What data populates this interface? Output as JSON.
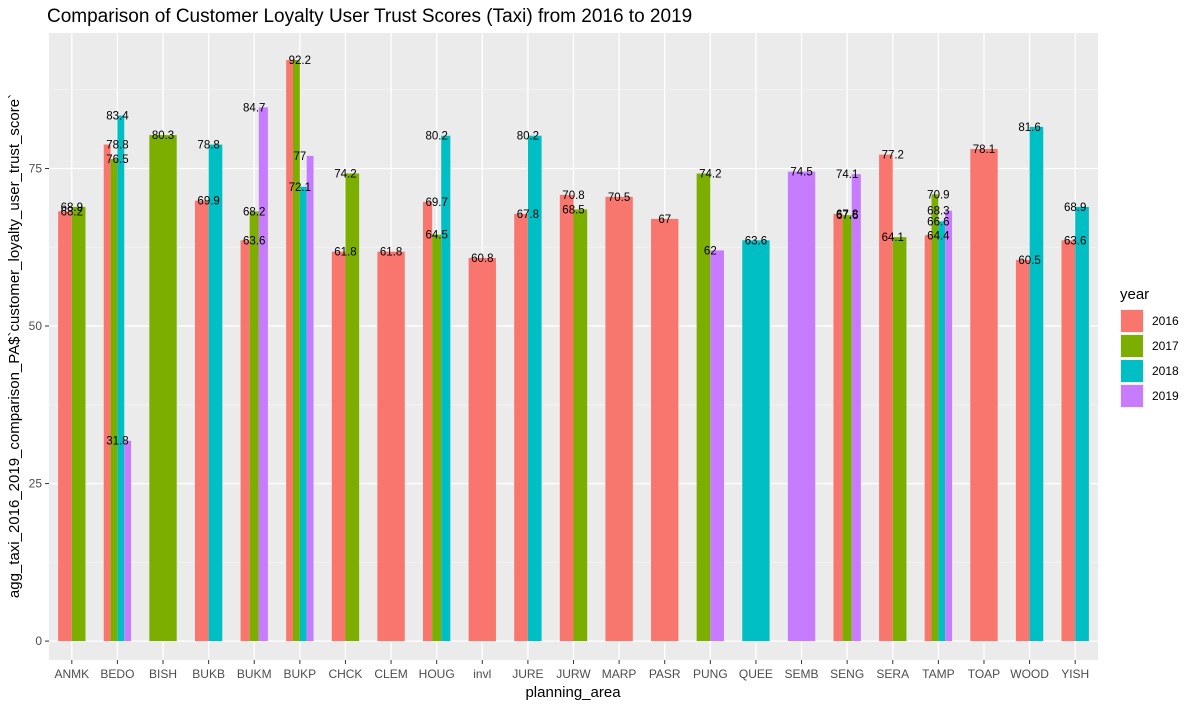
{
  "chart_data": {
    "type": "bar",
    "title": "Comparison of Customer Loyalty User Trust Scores (Taxi) from 2016 to 2019",
    "xlabel": "planning_area",
    "ylabel": "agg_taxi_2016_2019_comparison_PA$`customer_loyalty_user_trust_score`",
    "ylim": [
      -3,
      96.5
    ],
    "yticks": [
      0,
      25,
      50,
      75
    ],
    "grid": true,
    "legend": {
      "title": "year",
      "position": "right"
    },
    "colors": {
      "2016": "#F8766D",
      "2017": "#7CAE00",
      "2018": "#00BFC4",
      "2019": "#C77CFF"
    },
    "categories": [
      "ANMK",
      "BEDO",
      "BISH",
      "BUKB",
      "BUKM",
      "BUKP",
      "CHCK",
      "CLEM",
      "HOUG",
      "invl",
      "JURE",
      "JURW",
      "MARP",
      "PASR",
      "PUNG",
      "QUEE",
      "SEMB",
      "SENG",
      "SERA",
      "TAMP",
      "TOAP",
      "WOOD",
      "YISH"
    ],
    "bars": [
      {
        "category": "ANMK",
        "present": [
          "2016",
          "2017"
        ],
        "values": {
          "2016": 68.2,
          "2017": 68.9
        }
      },
      {
        "category": "BEDO",
        "present": [
          "2016",
          "2017",
          "2018",
          "2019"
        ],
        "values": {
          "2016": 78.8,
          "2017": 76.5,
          "2018": 83.4,
          "2019": 31.8
        }
      },
      {
        "category": "BISH",
        "present": [
          "2017"
        ],
        "values": {
          "2017": 80.3
        }
      },
      {
        "category": "BUKB",
        "present": [
          "2016",
          "2018"
        ],
        "values": {
          "2016": 69.9,
          "2018": 78.8
        }
      },
      {
        "category": "BUKM",
        "present": [
          "2016",
          "2017",
          "2019"
        ],
        "values": {
          "2016": 63.6,
          "2017": 68.2,
          "2019": 84.7
        }
      },
      {
        "category": "BUKP",
        "present": [
          "2016",
          "2017",
          "2018",
          "2019"
        ],
        "values": {
          "2016": 92.2,
          "2017": 92.2,
          "2018": 72.1,
          "2019": 77
        }
      },
      {
        "category": "CHCK",
        "present": [
          "2016",
          "2017"
        ],
        "values": {
          "2016": 61.8,
          "2017": 74.2
        }
      },
      {
        "category": "CLEM",
        "present": [
          "2016"
        ],
        "values": {
          "2016": 61.8
        }
      },
      {
        "category": "HOUG",
        "present": [
          "2016",
          "2017",
          "2018"
        ],
        "values": {
          "2016": 69.7,
          "2017": 64.5,
          "2018": 80.2
        }
      },
      {
        "category": "invl",
        "present": [
          "2016"
        ],
        "values": {
          "2016": 60.8
        }
      },
      {
        "category": "JURE",
        "present": [
          "2016",
          "2018"
        ],
        "values": {
          "2016": 67.8,
          "2018": 80.2
        }
      },
      {
        "category": "JURW",
        "present": [
          "2016",
          "2017"
        ],
        "values": {
          "2016": 70.8,
          "2017": 68.5
        }
      },
      {
        "category": "MARP",
        "present": [
          "2016"
        ],
        "values": {
          "2016": 70.5
        }
      },
      {
        "category": "PASR",
        "present": [
          "2016"
        ],
        "values": {
          "2016": 67
        }
      },
      {
        "category": "PUNG",
        "present": [
          "2017",
          "2019"
        ],
        "values": {
          "2017": 74.2,
          "2019": 62
        }
      },
      {
        "category": "QUEE",
        "present": [
          "2018"
        ],
        "values": {
          "2018": 63.6
        }
      },
      {
        "category": "SEMB",
        "present": [
          "2019"
        ],
        "values": {
          "2019": 74.5
        }
      },
      {
        "category": "SENG",
        "present": [
          "2016",
          "2017",
          "2019"
        ],
        "values": {
          "2016": 67.8,
          "2017": 67.6,
          "2019": 74.1
        }
      },
      {
        "category": "SERA",
        "present": [
          "2016",
          "2017"
        ],
        "values": {
          "2016": 77.2,
          "2017": 64.1
        }
      },
      {
        "category": "TAMP",
        "present": [
          "2016",
          "2017",
          "2018",
          "2019"
        ],
        "values": {
          "2016": 64.4,
          "2017": 70.9,
          "2018": 66.6,
          "2019": 68.3
        }
      },
      {
        "category": "TOAP",
        "present": [
          "2016"
        ],
        "values": {
          "2016": 78.1
        }
      },
      {
        "category": "WOOD",
        "present": [
          "2016",
          "2018"
        ],
        "values": {
          "2016": 60.5,
          "2018": 81.6
        }
      },
      {
        "category": "YISH",
        "present": [
          "2016",
          "2018"
        ],
        "values": {
          "2016": 63.6,
          "2018": 68.9
        }
      }
    ],
    "data_labels": [
      {
        "category": "ANMK",
        "value": 68.9,
        "text": "68.9"
      },
      {
        "category": "ANMK",
        "value": 68.2,
        "text": "68.2"
      },
      {
        "category": "BEDO",
        "value": 83.4,
        "text": "83.4"
      },
      {
        "category": "BEDO",
        "value": 78.8,
        "text": "78.8"
      },
      {
        "category": "BEDO",
        "value": 76.5,
        "text": "76.5"
      },
      {
        "category": "BEDO",
        "value": 31.8,
        "text": "31.8"
      },
      {
        "category": "BISH",
        "value": 80.3,
        "text": "80.3"
      },
      {
        "category": "BUKB",
        "value": 78.8,
        "text": "78.8"
      },
      {
        "category": "BUKB",
        "value": 69.9,
        "text": "69.9"
      },
      {
        "category": "BUKM",
        "value": 84.7,
        "text": "84.7"
      },
      {
        "category": "BUKM",
        "value": 68.2,
        "text": "68.2"
      },
      {
        "category": "BUKM",
        "value": 63.6,
        "text": "63.6"
      },
      {
        "category": "BUKP",
        "value": 92.2,
        "text": "92.2"
      },
      {
        "category": "BUKP",
        "value": 77,
        "text": "77"
      },
      {
        "category": "BUKP",
        "value": 72.1,
        "text": "72.1"
      },
      {
        "category": "CHCK",
        "value": 74.2,
        "text": "74.2"
      },
      {
        "category": "CHCK",
        "value": 61.8,
        "text": "61.8"
      },
      {
        "category": "CLEM",
        "value": 61.8,
        "text": "61.8"
      },
      {
        "category": "HOUG",
        "value": 80.2,
        "text": "80.2"
      },
      {
        "category": "HOUG",
        "value": 69.7,
        "text": "69.7"
      },
      {
        "category": "HOUG",
        "value": 64.5,
        "text": "64.5"
      },
      {
        "category": "invl",
        "value": 60.8,
        "text": "60.8"
      },
      {
        "category": "JURE",
        "value": 80.2,
        "text": "80.2"
      },
      {
        "category": "JURE",
        "value": 67.8,
        "text": "67.8"
      },
      {
        "category": "JURW",
        "value": 70.8,
        "text": "70.8"
      },
      {
        "category": "JURW",
        "value": 68.5,
        "text": "68.5"
      },
      {
        "category": "MARP",
        "value": 70.5,
        "text": "70.5"
      },
      {
        "category": "PASR",
        "value": 67,
        "text": "67"
      },
      {
        "category": "PUNG",
        "value": 74.2,
        "text": "74.2"
      },
      {
        "category": "PUNG",
        "value": 62,
        "text": "62"
      },
      {
        "category": "QUEE",
        "value": 63.6,
        "text": "63.6"
      },
      {
        "category": "SEMB",
        "value": 74.5,
        "text": "74.5"
      },
      {
        "category": "SENG",
        "value": 74.1,
        "text": "74.1"
      },
      {
        "category": "SENG",
        "value": 67.8,
        "text": "67.8"
      },
      {
        "category": "SENG",
        "value": 67.6,
        "text": "67.6"
      },
      {
        "category": "SERA",
        "value": 77.2,
        "text": "77.2"
      },
      {
        "category": "SERA",
        "value": 64.1,
        "text": "64.1"
      },
      {
        "category": "TAMP",
        "value": 70.9,
        "text": "70.9"
      },
      {
        "category": "TAMP",
        "value": 68.3,
        "text": "68.3"
      },
      {
        "category": "TAMP",
        "value": 66.6,
        "text": "66.6"
      },
      {
        "category": "TAMP",
        "value": 64.4,
        "text": "64.4"
      },
      {
        "category": "TOAP",
        "value": 78.1,
        "text": "78.1"
      },
      {
        "category": "WOOD",
        "value": 81.6,
        "text": "81.6"
      },
      {
        "category": "WOOD",
        "value": 60.5,
        "text": "60.5"
      },
      {
        "category": "YISH",
        "value": 68.9,
        "text": "68.9"
      },
      {
        "category": "YISH",
        "value": 63.6,
        "text": "63.6"
      }
    ]
  }
}
